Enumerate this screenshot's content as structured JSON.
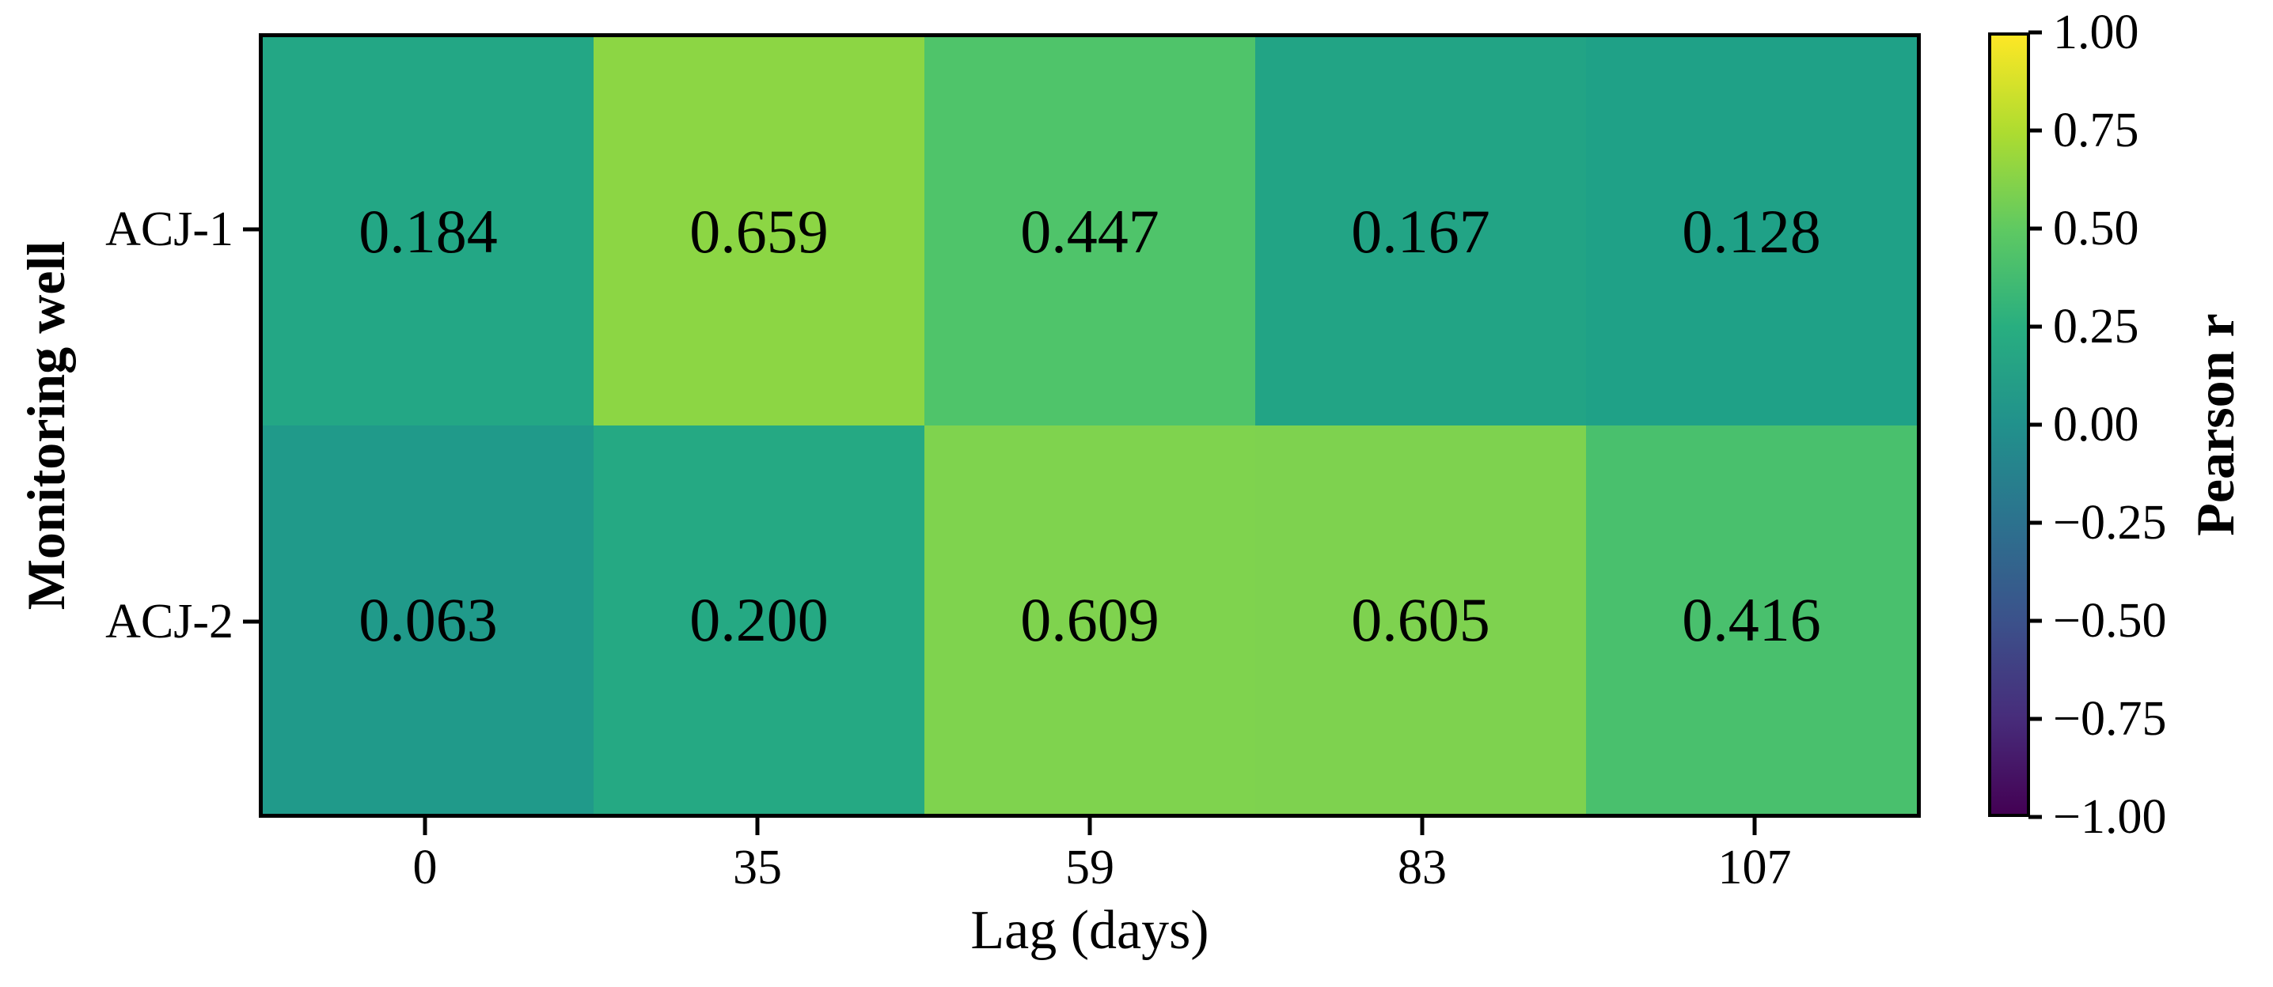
{
  "chart_data": {
    "type": "heatmap",
    "title": "",
    "xlabel": "Lag (days)",
    "ylabel": "Monitoring well",
    "colorbar_label": "Pearson r",
    "x_categories": [
      "0",
      "35",
      "59",
      "83",
      "107"
    ],
    "y_categories": [
      "ACJ-1",
      "ACJ-2"
    ],
    "values": [
      [
        0.184,
        0.659,
        0.447,
        0.167,
        0.128
      ],
      [
        0.063,
        0.2,
        0.609,
        0.605,
        0.416
      ]
    ],
    "value_labels": [
      [
        "0.184",
        "0.659",
        "0.447",
        "0.167",
        "0.128"
      ],
      [
        "0.063",
        "0.200",
        "0.609",
        "0.605",
        "0.416"
      ]
    ],
    "cell_colors": [
      [
        "#23a785",
        "#8cd644",
        "#4fc46a",
        "#22a485",
        "#1fa187"
      ],
      [
        "#209a8a",
        "#25a983",
        "#7fd34e",
        "#7ed24f",
        "#49c06d"
      ]
    ],
    "colormap": "viridis",
    "color_range": [
      -1,
      1
    ],
    "colorbar_ticks": [
      "1.00",
      "0.75",
      "0.50",
      "0.25",
      "0.00",
      "−0.25",
      "−0.50",
      "−0.75",
      "−1.00"
    ],
    "grid": false,
    "legend_position": "right-colorbar",
    "text_color": "#000000",
    "axis_color": "#000000"
  }
}
